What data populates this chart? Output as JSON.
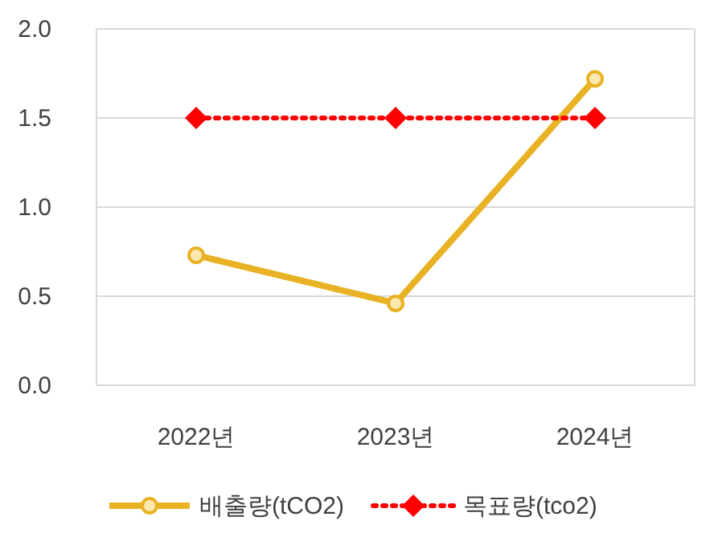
{
  "chart_data": {
    "type": "line",
    "categories": [
      "2022년",
      "2023년",
      "2024년"
    ],
    "series": [
      {
        "name": "배출량(tCO2)",
        "color": "#e8b224",
        "values": [
          0.73,
          0.46,
          1.72
        ],
        "marker": "circle",
        "line_style": "solid"
      },
      {
        "name": "목표량(tco2)",
        "color": "#ff0000",
        "values": [
          1.5,
          1.5,
          1.5
        ],
        "marker": "diamond",
        "line_style": "dotted"
      }
    ],
    "ylim": [
      0,
      2
    ],
    "yticks": [
      {
        "value": 0,
        "label": "0.0"
      },
      {
        "value": 0.5,
        "label": "0.5"
      },
      {
        "value": 1,
        "label": "1.0"
      },
      {
        "value": 1.5,
        "label": "1.5"
      },
      {
        "value": 2,
        "label": "2.0"
      }
    ],
    "grid": "y",
    "legend": "bottom"
  }
}
